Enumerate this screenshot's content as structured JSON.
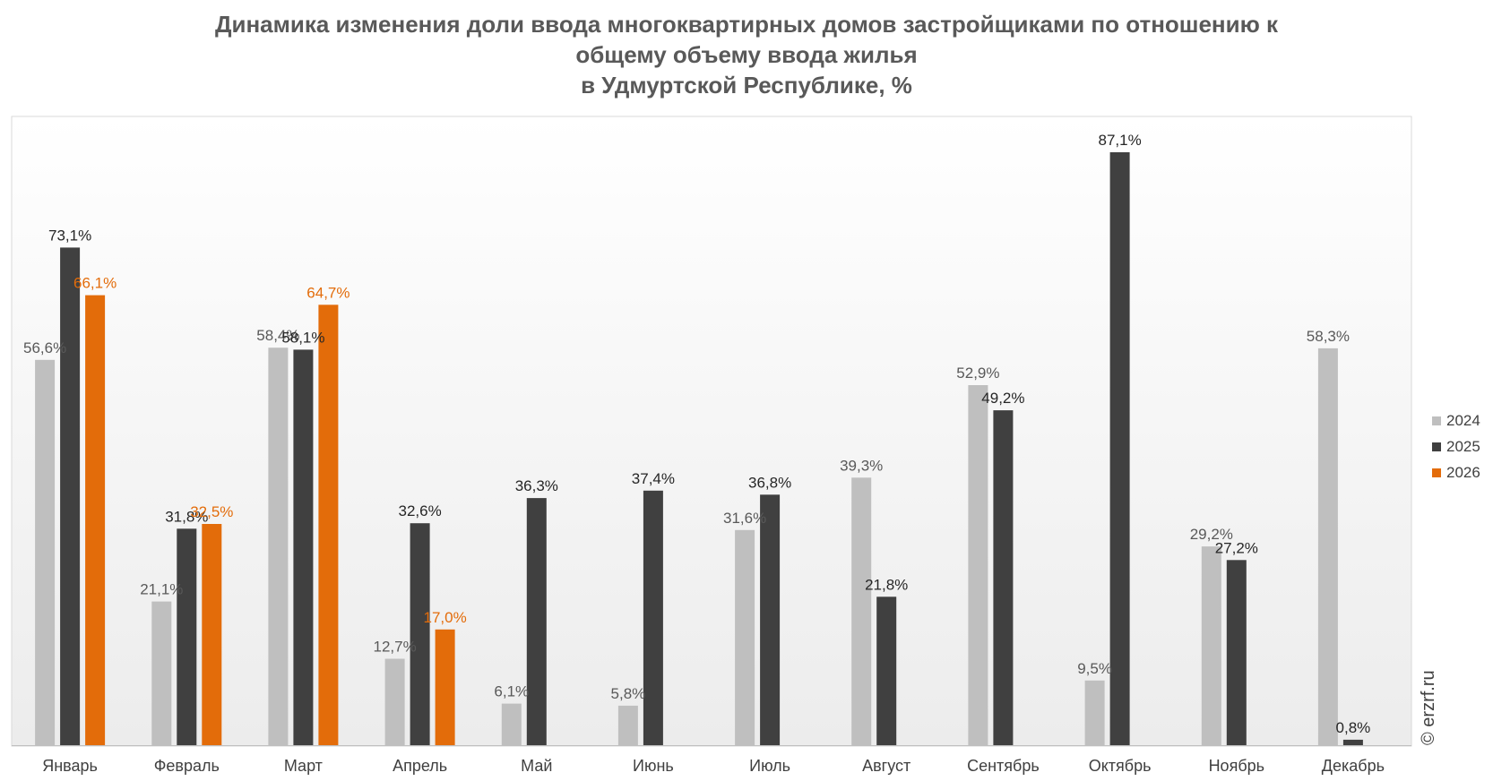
{
  "chart_data": {
    "type": "bar",
    "title_lines": [
      "Динамика изменения доли ввода многоквартирных домов застройщиками по отношению к",
      "общему объему ввода жилья",
      "в Удмуртской Республике, %"
    ],
    "categories": [
      "Январь",
      "Февраль",
      "Март",
      "Апрель",
      "Май",
      "Июнь",
      "Июль",
      "Август",
      "Сентябрь",
      "Октябрь",
      "Ноябрь",
      "Декабрь"
    ],
    "series": [
      {
        "name": "2024",
        "color": "#bfbfbf",
        "label_color": "#595959",
        "values": [
          56.6,
          21.1,
          58.4,
          12.7,
          6.1,
          5.8,
          31.6,
          39.3,
          52.9,
          9.5,
          29.2,
          58.3
        ],
        "labels": [
          "56,6%",
          "21,1%",
          "58,4%",
          "12,7%",
          "6,1%",
          "5,8%",
          "31,6%",
          "39,3%",
          "52,9%",
          "9,5%",
          "29,2%",
          "58,3%"
        ]
      },
      {
        "name": "2025",
        "color": "#404040",
        "label_color": "#262626",
        "values": [
          73.1,
          31.8,
          58.1,
          32.6,
          36.3,
          37.4,
          36.8,
          21.8,
          49.2,
          87.1,
          27.2,
          0.8
        ],
        "labels": [
          "73,1%",
          "31,8%",
          "58,1%",
          "32,6%",
          "36,3%",
          "37,4%",
          "36,8%",
          "21,8%",
          "49,2%",
          "87,1%",
          "27,2%",
          "0,8%"
        ]
      },
      {
        "name": "2026",
        "color": "#e36c0a",
        "label_color": "#e36c0a",
        "values": [
          66.1,
          32.5,
          64.7,
          17.0,
          null,
          null,
          null,
          null,
          null,
          null,
          null,
          null
        ],
        "labels": [
          "66,1%",
          "32,5%",
          "64,7%",
          "17,0%",
          null,
          null,
          null,
          null,
          null,
          null,
          null,
          null
        ]
      }
    ],
    "ylim": [
      0,
      100
    ],
    "grid": false,
    "legend_position": "right",
    "watermark": "© erzrf.ru"
  }
}
